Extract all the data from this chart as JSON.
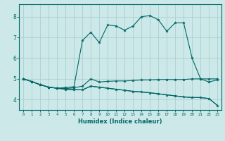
{
  "xlabel": "Humidex (Indice chaleur)",
  "bg_color": "#cce8e8",
  "grid_color": "#aad0d0",
  "line_color": "#006666",
  "xlim": [
    -0.5,
    23.5
  ],
  "ylim": [
    3.5,
    8.6
  ],
  "yticks": [
    4,
    5,
    6,
    7,
    8
  ],
  "xticks": [
    0,
    1,
    2,
    3,
    4,
    5,
    6,
    7,
    8,
    9,
    10,
    11,
    12,
    13,
    14,
    15,
    16,
    17,
    18,
    19,
    20,
    21,
    22,
    23
  ],
  "line1_x": [
    0,
    1,
    2,
    3,
    4,
    5,
    6,
    7,
    8,
    9,
    10,
    11,
    12,
    13,
    14,
    15,
    16,
    17,
    18,
    19,
    20,
    21,
    22,
    23
  ],
  "line1_y": [
    5.0,
    4.87,
    4.72,
    4.6,
    4.55,
    4.58,
    4.62,
    6.85,
    7.25,
    6.75,
    7.6,
    7.55,
    7.35,
    7.55,
    8.0,
    8.05,
    7.85,
    7.3,
    7.7,
    7.7,
    6.0,
    5.0,
    4.85,
    4.95
  ],
  "line2_x": [
    0,
    1,
    2,
    3,
    4,
    5,
    6,
    7,
    8,
    9,
    10,
    11,
    12,
    13,
    14,
    15,
    16,
    17,
    18,
    19,
    20,
    21,
    22,
    23
  ],
  "line2_y": [
    5.0,
    4.87,
    4.72,
    4.6,
    4.55,
    4.53,
    4.57,
    4.65,
    5.0,
    4.85,
    4.88,
    4.9,
    4.9,
    4.92,
    4.95,
    4.95,
    4.97,
    4.97,
    4.97,
    4.97,
    5.0,
    5.0,
    5.0,
    5.0
  ],
  "line3_x": [
    0,
    1,
    2,
    3,
    4,
    5,
    6,
    7,
    8,
    9,
    10,
    11,
    12,
    13,
    14,
    15,
    16,
    17,
    18,
    19,
    20,
    21,
    22,
    23
  ],
  "line3_y": [
    5.0,
    4.87,
    4.72,
    4.6,
    4.55,
    4.5,
    4.48,
    4.47,
    4.65,
    4.6,
    4.55,
    4.5,
    4.45,
    4.4,
    4.37,
    4.33,
    4.28,
    4.23,
    4.18,
    4.13,
    4.1,
    4.1,
    4.05,
    3.72
  ],
  "line4_x": [
    0,
    1,
    2,
    3,
    4,
    5,
    6,
    7,
    8,
    9,
    10,
    11,
    12,
    13,
    14,
    15,
    16,
    17,
    18,
    19,
    20,
    21,
    22,
    23
  ],
  "line4_y": [
    5.0,
    4.87,
    4.72,
    4.6,
    4.55,
    4.5,
    4.48,
    4.47,
    4.65,
    4.6,
    4.55,
    4.5,
    4.45,
    4.4,
    4.37,
    4.33,
    4.28,
    4.23,
    4.18,
    4.13,
    4.1,
    4.1,
    4.05,
    3.72
  ]
}
